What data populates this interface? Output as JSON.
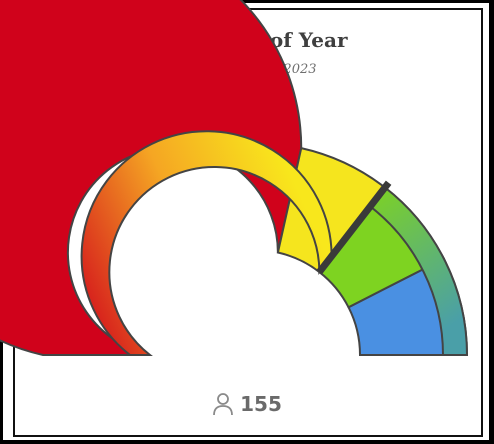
{
  "chart_data": {
    "type": "gauge",
    "title": "Beginning of Year",
    "subtitle": "Nov 10 - Dec 4, 2023",
    "segments": [
      {
        "name": "red",
        "share": 0.57,
        "color": "#d0021b"
      },
      {
        "name": "yellow",
        "share": 0.14,
        "color": "#f5e51e"
      },
      {
        "name": "green",
        "share": 0.14,
        "color": "#7ed321"
      },
      {
        "name": "blue",
        "share": 0.15,
        "color": "#4a90e2"
      }
    ],
    "outer_band": {
      "colors": [
        "#7ed321",
        "#4a9fa8"
      ],
      "share": 0.29
    },
    "inner_band": {
      "colors": [
        "#d0021b",
        "#f5a623",
        "#f8e71c"
      ],
      "share": 0.71
    },
    "marker_share": 0.71,
    "count": 155,
    "count_icon": "person-icon",
    "colors": {
      "outline": "#444444",
      "marker": "#3a3a3a"
    }
  }
}
